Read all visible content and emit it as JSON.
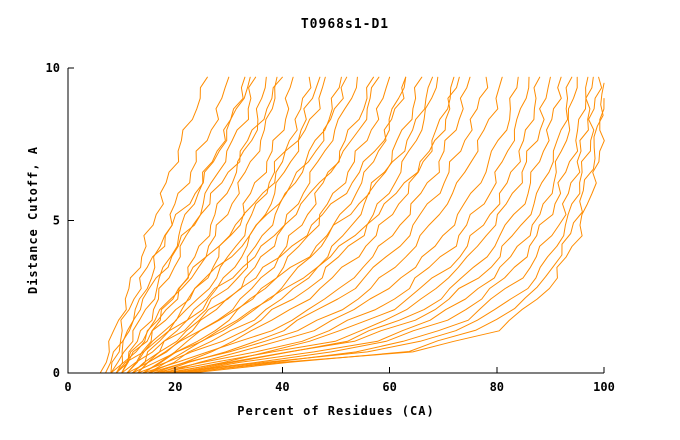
{
  "chart_data": {
    "type": "line",
    "title": "T0968s1-D1",
    "xlabel": "Percent of Residues (CA)",
    "ylabel": "Distance Cutoff, A",
    "xlim": [
      0,
      100
    ],
    "ylim": [
      0,
      10
    ],
    "x_ticks": [
      0,
      20,
      40,
      60,
      80,
      100
    ],
    "y_ticks": [
      0,
      5,
      10
    ],
    "grid": false,
    "legend": "none",
    "line_color": "#FF8C00",
    "axis_color": "#000000",
    "background_color": "#FFFFFF",
    "series": [
      {
        "points": [
          [
            6,
            0
          ],
          [
            9,
            1.5
          ],
          [
            12,
            3
          ],
          [
            15,
            4.5
          ],
          [
            18,
            6
          ],
          [
            21,
            7.5
          ],
          [
            24,
            8.8
          ],
          [
            26,
            9.7
          ]
        ]
      },
      {
        "points": [
          [
            7,
            0
          ],
          [
            10,
            1
          ],
          [
            14,
            2.5
          ],
          [
            17,
            4
          ],
          [
            20,
            5.5
          ],
          [
            24,
            7
          ],
          [
            28,
            8.5
          ],
          [
            30,
            9.7
          ]
        ]
      },
      {
        "points": [
          [
            8,
            0
          ],
          [
            12,
            1.2
          ],
          [
            15,
            2.2
          ],
          [
            19,
            3.8
          ],
          [
            23,
            5.5
          ],
          [
            27,
            7
          ],
          [
            31,
            8.5
          ],
          [
            33,
            9.7
          ]
        ]
      },
      {
        "points": [
          [
            9,
            0
          ],
          [
            13,
            1
          ],
          [
            17,
            2.5
          ],
          [
            21,
            4
          ],
          [
            25,
            5.5
          ],
          [
            29,
            7
          ],
          [
            33,
            8.3
          ],
          [
            35,
            9.7
          ]
        ]
      },
      {
        "points": [
          [
            10,
            0
          ],
          [
            14,
            1
          ],
          [
            18,
            2
          ],
          [
            23,
            3.5
          ],
          [
            27,
            5
          ],
          [
            31,
            6.5
          ],
          [
            35,
            8
          ],
          [
            37,
            9.7
          ]
        ]
      },
      {
        "points": [
          [
            8,
            0
          ],
          [
            13,
            0.8
          ],
          [
            18,
            2
          ],
          [
            24,
            3.5
          ],
          [
            29,
            5
          ],
          [
            33,
            6.5
          ],
          [
            37,
            8
          ],
          [
            39,
            9.7
          ]
        ]
      },
      {
        "points": [
          [
            11,
            0
          ],
          [
            15,
            0.8
          ],
          [
            20,
            1.8
          ],
          [
            26,
            3.2
          ],
          [
            31,
            4.8
          ],
          [
            36,
            6.5
          ],
          [
            40,
            8
          ],
          [
            42,
            9.7
          ]
        ]
      },
      {
        "points": [
          [
            9,
            0
          ],
          [
            14,
            0.7
          ],
          [
            21,
            1.8
          ],
          [
            28,
            3.2
          ],
          [
            34,
            5
          ],
          [
            39,
            6.8
          ],
          [
            43,
            8.3
          ],
          [
            45,
            9.7
          ]
        ]
      },
      {
        "points": [
          [
            12,
            0
          ],
          [
            17,
            0.8
          ],
          [
            23,
            1.8
          ],
          [
            30,
            3.2
          ],
          [
            36,
            5
          ],
          [
            41,
            6.8
          ],
          [
            46,
            8.5
          ],
          [
            48,
            9.7
          ]
        ]
      },
      {
        "points": [
          [
            10,
            0
          ],
          [
            16,
            0.7
          ],
          [
            24,
            1.8
          ],
          [
            32,
            3.2
          ],
          [
            38,
            5
          ],
          [
            44,
            6.8
          ],
          [
            49,
            8.5
          ],
          [
            51,
            9.7
          ]
        ]
      },
      {
        "points": [
          [
            13,
            0
          ],
          [
            18,
            0.7
          ],
          [
            26,
            1.8
          ],
          [
            34,
            3.2
          ],
          [
            41,
            5
          ],
          [
            47,
            7
          ],
          [
            52,
            8.7
          ],
          [
            54,
            9.7
          ]
        ]
      },
      {
        "points": [
          [
            11,
            0
          ],
          [
            17,
            0.6
          ],
          [
            27,
            1.6
          ],
          [
            36,
            3
          ],
          [
            44,
            5
          ],
          [
            50,
            7
          ],
          [
            55,
            8.7
          ],
          [
            57,
            9.7
          ]
        ]
      },
      {
        "points": [
          [
            14,
            0
          ],
          [
            20,
            0.6
          ],
          [
            29,
            1.6
          ],
          [
            38,
            3
          ],
          [
            46,
            4.8
          ],
          [
            53,
            6.8
          ],
          [
            58,
            8.5
          ],
          [
            60,
            9.7
          ]
        ]
      },
      {
        "points": [
          [
            12,
            0
          ],
          [
            19,
            0.6
          ],
          [
            30,
            1.5
          ],
          [
            40,
            2.8
          ],
          [
            49,
            4.6
          ],
          [
            56,
            6.6
          ],
          [
            61,
            8.5
          ],
          [
            63,
            9.7
          ]
        ]
      },
      {
        "points": [
          [
            15,
            0
          ],
          [
            22,
            0.6
          ],
          [
            32,
            1.5
          ],
          [
            43,
            2.8
          ],
          [
            52,
            4.6
          ],
          [
            59,
            6.6
          ],
          [
            64,
            8.5
          ],
          [
            66,
            9.7
          ]
        ]
      },
      {
        "points": [
          [
            13,
            0
          ],
          [
            21,
            0.5
          ],
          [
            33,
            1.4
          ],
          [
            45,
            2.8
          ],
          [
            55,
            4.6
          ],
          [
            62,
            6.6
          ],
          [
            67,
            8.5
          ],
          [
            69,
            9.7
          ]
        ]
      },
      {
        "points": [
          [
            16,
            0
          ],
          [
            24,
            0.5
          ],
          [
            35,
            1.4
          ],
          [
            47,
            2.7
          ],
          [
            57,
            4.4
          ],
          [
            65,
            6.4
          ],
          [
            70,
            8.4
          ],
          [
            72,
            9.7
          ]
        ]
      },
      {
        "points": [
          [
            14,
            0
          ],
          [
            23,
            0.5
          ],
          [
            37,
            1.3
          ],
          [
            50,
            2.6
          ],
          [
            60,
            4.4
          ],
          [
            68,
            6.4
          ],
          [
            73,
            8.4
          ],
          [
            75,
            9.7
          ]
        ]
      },
      {
        "points": [
          [
            17,
            0
          ],
          [
            26,
            0.5
          ],
          [
            39,
            1.3
          ],
          [
            52,
            2.6
          ],
          [
            62,
            4.2
          ],
          [
            70,
            6.2
          ],
          [
            76,
            8.4
          ],
          [
            78,
            9.7
          ]
        ]
      },
      {
        "points": [
          [
            15,
            0
          ],
          [
            25,
            0.5
          ],
          [
            41,
            1.2
          ],
          [
            55,
            2.5
          ],
          [
            65,
            4.2
          ],
          [
            73,
            6.2
          ],
          [
            79,
            8.4
          ],
          [
            81,
            9.7
          ]
        ]
      },
      {
        "points": [
          [
            18,
            0
          ],
          [
            28,
            0.5
          ],
          [
            43,
            1.2
          ],
          [
            57,
            2.4
          ],
          [
            68,
            4
          ],
          [
            76,
            6
          ],
          [
            82,
            8.2
          ],
          [
            84,
            9.7
          ]
        ]
      },
      {
        "points": [
          [
            16,
            0
          ],
          [
            27,
            0.4
          ],
          [
            45,
            1.1
          ],
          [
            60,
            2.3
          ],
          [
            71,
            4
          ],
          [
            79,
            6
          ],
          [
            84,
            8.2
          ],
          [
            86,
            9.7
          ]
        ]
      },
      {
        "points": [
          [
            19,
            0
          ],
          [
            30,
            0.4
          ],
          [
            47,
            1.1
          ],
          [
            62,
            2.2
          ],
          [
            73,
            3.8
          ],
          [
            81,
            5.8
          ],
          [
            86,
            8
          ],
          [
            88,
            9.7
          ]
        ]
      },
      {
        "points": [
          [
            17,
            0
          ],
          [
            29,
            0.4
          ],
          [
            49,
            1
          ],
          [
            64,
            2.1
          ],
          [
            75,
            3.8
          ],
          [
            83,
            5.8
          ],
          [
            88,
            8
          ],
          [
            90,
            9.7
          ]
        ]
      },
      {
        "points": [
          [
            20,
            0
          ],
          [
            32,
            0.4
          ],
          [
            51,
            1
          ],
          [
            66,
            2
          ],
          [
            77,
            3.6
          ],
          [
            85,
            5.6
          ],
          [
            90,
            8
          ],
          [
            92,
            9.7
          ]
        ]
      },
      {
        "points": [
          [
            18,
            0
          ],
          [
            31,
            0.4
          ],
          [
            53,
            1
          ],
          [
            68,
            2
          ],
          [
            79,
            3.5
          ],
          [
            87,
            5.5
          ],
          [
            92,
            7.8
          ],
          [
            94,
            9.7
          ]
        ]
      },
      {
        "points": [
          [
            21,
            0
          ],
          [
            34,
            0.4
          ],
          [
            55,
            0.9
          ],
          [
            70,
            1.9
          ],
          [
            81,
            3.4
          ],
          [
            89,
            5.4
          ],
          [
            93,
            7.8
          ],
          [
            95,
            9.7
          ]
        ]
      },
      {
        "points": [
          [
            19,
            0
          ],
          [
            33,
            0.3
          ],
          [
            57,
            0.9
          ],
          [
            72,
            1.8
          ],
          [
            83,
            3.3
          ],
          [
            90,
            5.2
          ],
          [
            95,
            7.6
          ],
          [
            97,
            9.7
          ]
        ]
      },
      {
        "points": [
          [
            22,
            0
          ],
          [
            36,
            0.3
          ],
          [
            59,
            0.8
          ],
          [
            74,
            1.7
          ],
          [
            85,
            3.2
          ],
          [
            92,
            5
          ],
          [
            96,
            7.4
          ],
          [
            98,
            9.7
          ]
        ]
      },
      {
        "points": [
          [
            20,
            0
          ],
          [
            35,
            0.3
          ],
          [
            61,
            0.8
          ],
          [
            76,
            1.6
          ],
          [
            87,
            3
          ],
          [
            93,
            4.8
          ],
          [
            97,
            7.2
          ],
          [
            99,
            9.7
          ]
        ]
      },
      {
        "points": [
          [
            23,
            0
          ],
          [
            38,
            0.3
          ],
          [
            63,
            0.7
          ],
          [
            78,
            1.5
          ],
          [
            88,
            2.8
          ],
          [
            94,
            4.6
          ],
          [
            98,
            7
          ],
          [
            100,
            9.5
          ]
        ]
      },
      {
        "points": [
          [
            21,
            0
          ],
          [
            37,
            0.3
          ],
          [
            65,
            0.7
          ],
          [
            80,
            1.4
          ],
          [
            89,
            2.6
          ],
          [
            95,
            4.4
          ],
          [
            99,
            6.8
          ],
          [
            100,
            9
          ]
        ]
      },
      {
        "points": [
          [
            8,
            0
          ],
          [
            11,
            2
          ],
          [
            15,
            3.5
          ],
          [
            20,
            5
          ],
          [
            26,
            6.5
          ],
          [
            30,
            8
          ],
          [
            34,
            9.7
          ]
        ]
      },
      {
        "points": [
          [
            9,
            0
          ],
          [
            12,
            1.8
          ],
          [
            17,
            3.2
          ],
          [
            23,
            4.8
          ],
          [
            29,
            6.3
          ],
          [
            35,
            8
          ],
          [
            40,
            9.7
          ]
        ]
      },
      {
        "points": [
          [
            10,
            0
          ],
          [
            15,
            1.5
          ],
          [
            22,
            3
          ],
          [
            30,
            4.5
          ],
          [
            37,
            6
          ],
          [
            43,
            7.8
          ],
          [
            47,
            9.7
          ]
        ]
      },
      {
        "points": [
          [
            11,
            0
          ],
          [
            16,
            1.3
          ],
          [
            24,
            2.8
          ],
          [
            33,
            4.3
          ],
          [
            41,
            6
          ],
          [
            48,
            7.8
          ],
          [
            52,
            9.7
          ]
        ]
      },
      {
        "points": [
          [
            12,
            0
          ],
          [
            18,
            1.2
          ],
          [
            27,
            2.6
          ],
          [
            37,
            4.2
          ],
          [
            46,
            6
          ],
          [
            54,
            7.8
          ],
          [
            58,
            9.7
          ]
        ]
      },
      {
        "points": [
          [
            13,
            0
          ],
          [
            20,
            1.1
          ],
          [
            30,
            2.5
          ],
          [
            41,
            4
          ],
          [
            51,
            5.8
          ],
          [
            59,
            7.7
          ],
          [
            63,
            9.7
          ]
        ]
      },
      {
        "points": [
          [
            14,
            0
          ],
          [
            22,
            1
          ],
          [
            33,
            2.3
          ],
          [
            45,
            3.9
          ],
          [
            55,
            5.7
          ],
          [
            64,
            7.7
          ],
          [
            68,
            9.7
          ]
        ]
      },
      {
        "points": [
          [
            15,
            0
          ],
          [
            24,
            0.9
          ],
          [
            36,
            2.2
          ],
          [
            49,
            3.8
          ],
          [
            60,
            5.6
          ],
          [
            69,
            7.6
          ],
          [
            73,
            9.7
          ]
        ]
      }
    ]
  }
}
